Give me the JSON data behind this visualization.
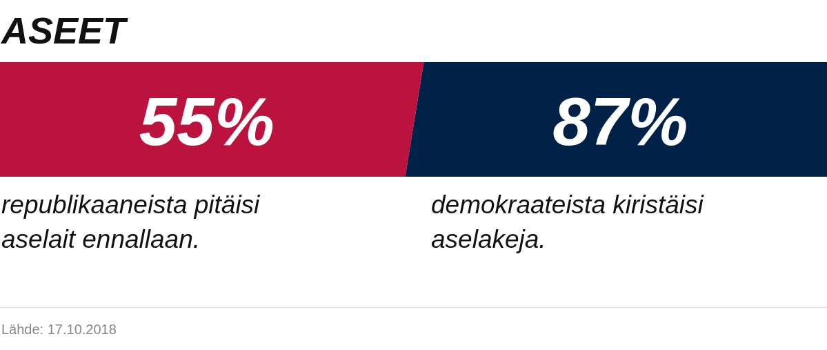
{
  "chart_data": {
    "type": "other",
    "title": "ASEET",
    "categories": [
      "republikaaneista pitäisi aselait ennallaan.",
      "demokraateista kiristäisi aselakeja."
    ],
    "values": [
      55,
      87
    ],
    "value_labels": [
      "55%",
      "87%"
    ],
    "colors": [
      "#bb133e",
      "#002147"
    ],
    "annotations": [
      "Lähde: 17.10.2018"
    ]
  }
}
